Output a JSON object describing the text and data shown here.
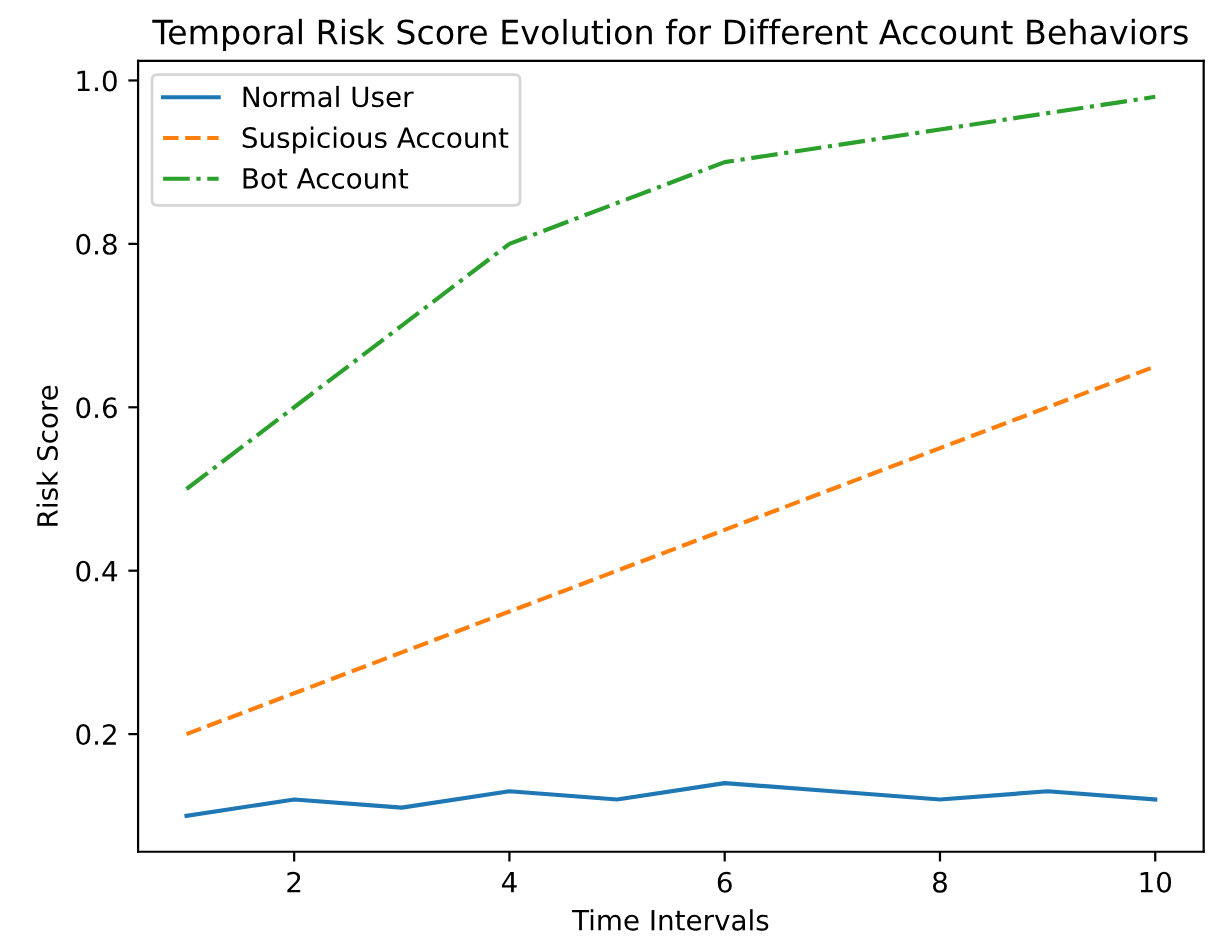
{
  "chart_data": {
    "type": "line",
    "title": "Temporal Risk Score Evolution for Different Account Behaviors",
    "xlabel": "Time Intervals",
    "ylabel": "Risk Score",
    "x": [
      1,
      2,
      3,
      4,
      5,
      6,
      7,
      8,
      9,
      10
    ],
    "series": [
      {
        "name": "Normal User",
        "color": "#1f77b4",
        "line_style": "solid",
        "values": [
          0.1,
          0.12,
          0.11,
          0.13,
          0.12,
          0.14,
          0.13,
          0.12,
          0.13,
          0.12
        ]
      },
      {
        "name": "Suspicious Account",
        "color": "#ff7f0e",
        "line_style": "dashed",
        "values": [
          0.2,
          0.25,
          0.3,
          0.35,
          0.4,
          0.45,
          0.5,
          0.55,
          0.6,
          0.65
        ]
      },
      {
        "name": "Bot Account",
        "color": "#2ca02c",
        "line_style": "dashdot",
        "values": [
          0.5,
          0.6,
          0.7,
          0.8,
          0.85,
          0.9,
          0.92,
          0.94,
          0.96,
          0.98
        ]
      }
    ],
    "xlim": [
      0.55,
      10.45
    ],
    "ylim": [
      0.056,
      1.024
    ],
    "xticks": [
      2,
      4,
      6,
      8,
      10
    ],
    "yticks": [
      0.2,
      0.4,
      0.6,
      0.8,
      {
        "value": 1,
        "label": "1.0"
      }
    ],
    "legend": "top left",
    "grid": false,
    "marker": "none"
  }
}
